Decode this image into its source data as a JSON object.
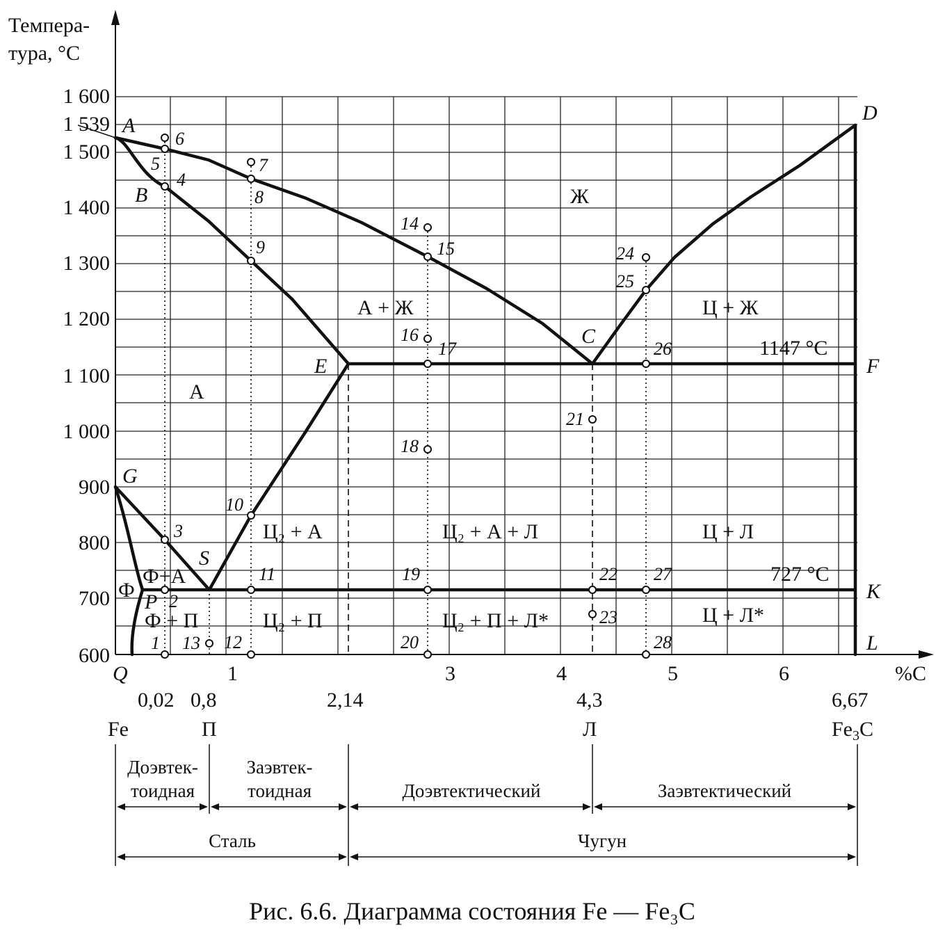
{
  "axis": {
    "y_title_line1": "Темпера-",
    "y_title_line2": "тура, °С",
    "y_ticks": [
      "1 600",
      "1 500",
      "1 400",
      "1 300",
      "1 200",
      "1 100",
      "1 000",
      "900",
      "800",
      "700",
      "600"
    ],
    "y_special": "1 539",
    "x_ticks": [
      "1",
      "3",
      "4",
      "5",
      "6"
    ],
    "x_unit": "%C",
    "origin": "Q"
  },
  "below_axis": {
    "compositions": [
      "0,02",
      "0,8",
      "2,14",
      "4,3",
      "6,67"
    ],
    "phases": {
      "fe": "Fe",
      "p": "П",
      "l": "Л",
      "fe3c_a": "Fe",
      "fe3c_sub": "3",
      "fe3c_b": "C"
    }
  },
  "critical_points": {
    "A": "A",
    "B": "B",
    "C": "C",
    "D": "D",
    "E": "E",
    "F": "F",
    "G": "G",
    "S": "S",
    "P": "P",
    "K": "K",
    "L": "L",
    "Q": "Q"
  },
  "regions": {
    "zh": "Ж",
    "a_zh": "А + Ж",
    "a": "А",
    "c_zh": "Ц + Ж",
    "phi_a": "Ф+А",
    "phi": "Ф",
    "phi_p": "Ф + П",
    "c2_a": "Ц₂ + А",
    "c2_p": "Ц₂ + П",
    "c2_a_l": "Ц₂ + А + Л",
    "c2_p_l": "Ц₂ + П + Л*",
    "c_l": "Ц + Л",
    "c_l_star": "Ц + Л*"
  },
  "temperatures": {
    "eutectic": "1147 °С",
    "eutectoid": "727 °С"
  },
  "points": [
    "1",
    "2",
    "3",
    "4",
    "5",
    "6",
    "7",
    "8",
    "9",
    "10",
    "11",
    "12",
    "13",
    "14",
    "15",
    "16",
    "17",
    "18",
    "19",
    "20",
    "21",
    "22",
    "23",
    "24",
    "25",
    "26",
    "27",
    "28"
  ],
  "classification": {
    "hypo_eutectoid_1": "Доэвтек-",
    "hypo_eutectoid_2": "тоидная",
    "hyper_eutectoid_1": "Заэвтек-",
    "hyper_eutectoid_2": "тоидная",
    "hypo_eutectic": "Доэвтектический",
    "hyper_eutectic": "Заэвтектический",
    "steel": "Сталь",
    "cast_iron": "Чугун"
  },
  "caption": "Рис. 6.6. Диаграмма состояния Fe — Fe₃C"
}
